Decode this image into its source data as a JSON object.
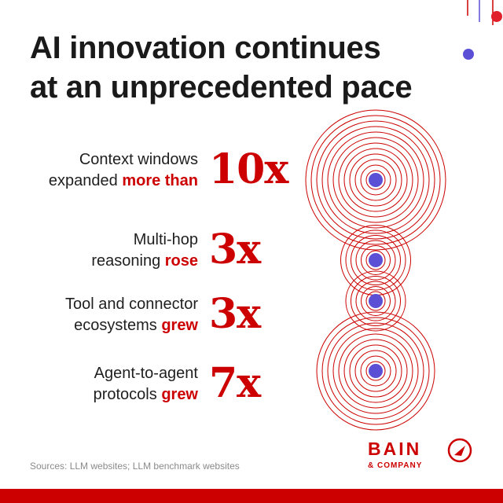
{
  "title": {
    "line1": "AI innovation continues",
    "line2": "at an unprecedented pace"
  },
  "rows": [
    {
      "line1": "Context windows",
      "line2_pre": "expanded ",
      "highlight": "more than",
      "multiplier": "10x"
    },
    {
      "line1": "Multi-hop",
      "line2_pre": "reasoning ",
      "highlight": "rose",
      "multiplier": "3x"
    },
    {
      "line1": "Tool and connector",
      "line2_pre": "ecosystems ",
      "highlight": "grew",
      "multiplier": "3x"
    },
    {
      "line1": "Agent-to-agent",
      "line2_pre": "protocols ",
      "highlight": "grew",
      "multiplier": "7x"
    }
  ],
  "sources": "Sources: LLM websites; LLM benchmark websites",
  "logo": {
    "main": "BAIN",
    "sub": "& COMPANY"
  },
  "colors": {
    "accent": "#cc0000",
    "dot": "#5b4fd6",
    "text": "#1a1a1a",
    "muted": "#8a8a8a"
  },
  "icons": [
    "concentric-rings-icon",
    "bain-compass-icon"
  ]
}
